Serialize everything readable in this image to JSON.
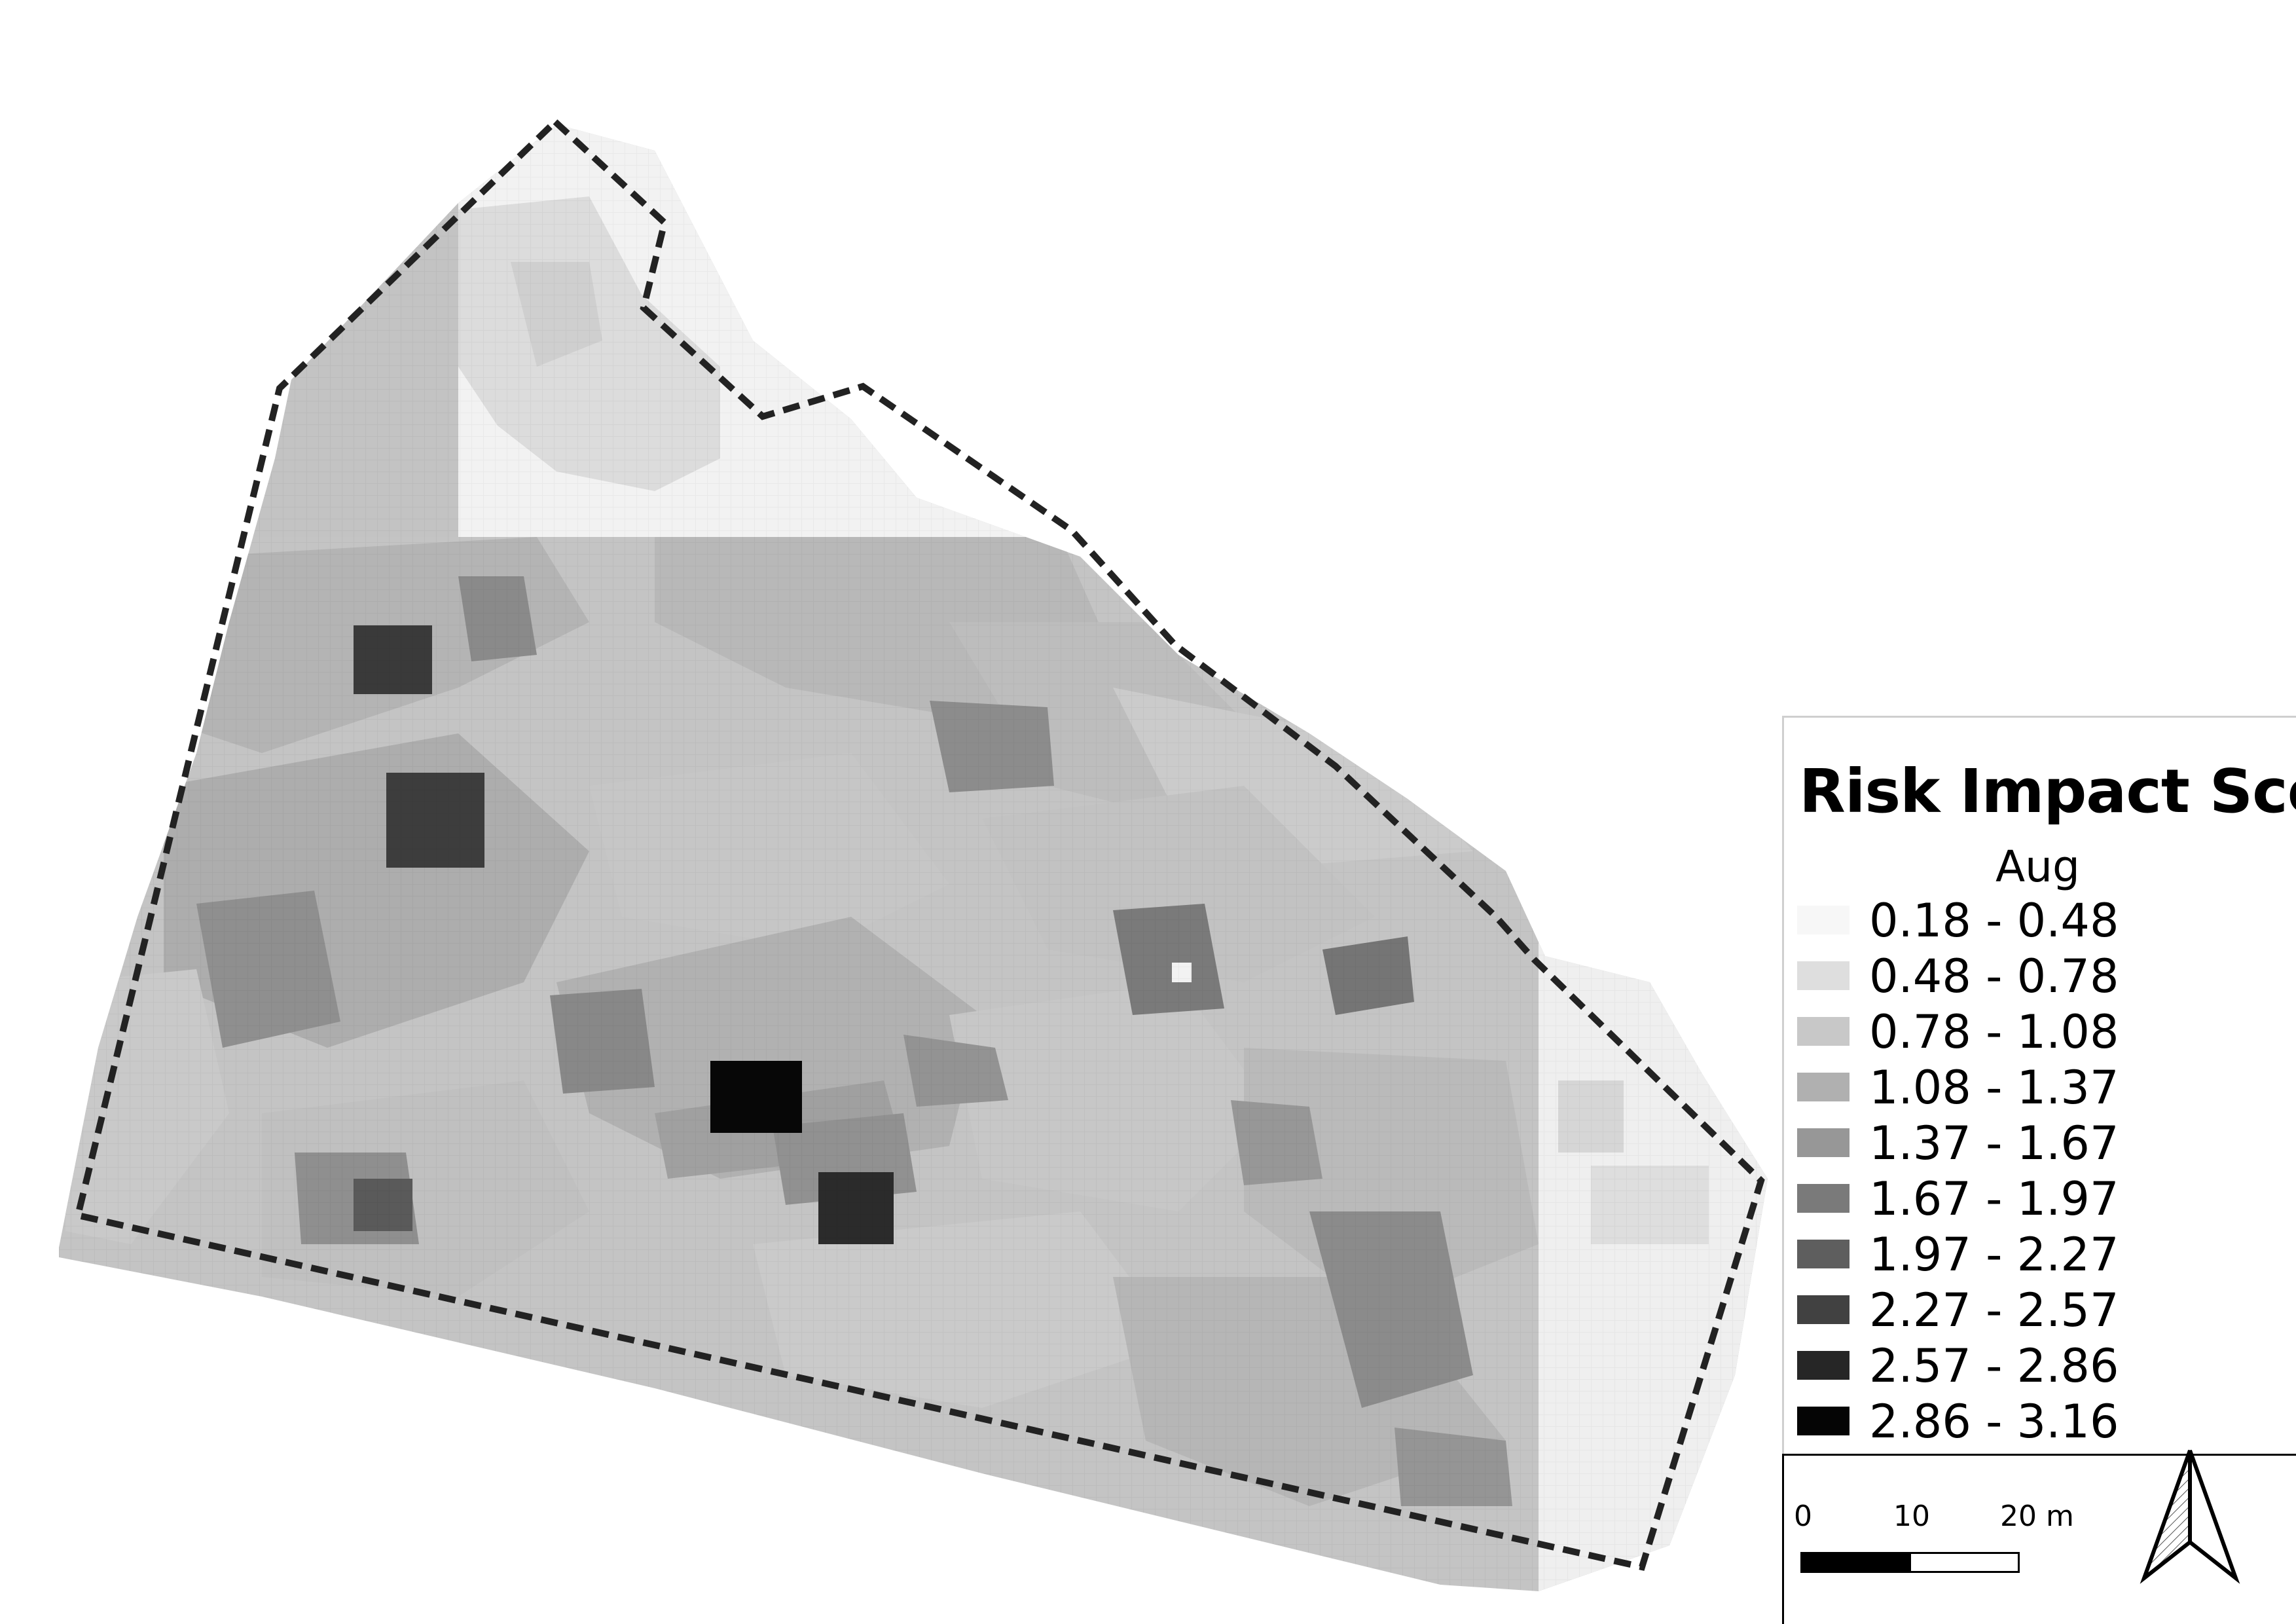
{
  "legend": {
    "title": "Risk Impact Score",
    "subtitle": "Aug",
    "classes": [
      {
        "label": "0.18 - 0.48",
        "color": "#f7f7f7"
      },
      {
        "label": "0.48 - 0.78",
        "color": "#dedede"
      },
      {
        "label": "0.78 - 1.08",
        "color": "#c8c8c8"
      },
      {
        "label": "1.08 - 1.37",
        "color": "#b0b0b0"
      },
      {
        "label": "1.37 - 1.67",
        "color": "#979797"
      },
      {
        "label": "1.67 - 1.97",
        "color": "#7a7a7a"
      },
      {
        "label": "1.97 - 2.27",
        "color": "#5e5e5e"
      },
      {
        "label": "2.27 - 2.57",
        "color": "#414141"
      },
      {
        "label": "2.57 - 2.86",
        "color": "#262626"
      },
      {
        "label": "2.86 - 3.16",
        "color": "#050505"
      }
    ]
  },
  "scale_bar": {
    "ticks": [
      "0",
      "10",
      "20 m"
    ]
  },
  "north_arrow": {
    "icon": "north-arrow-icon"
  },
  "boundary": {
    "style": "dashed",
    "color": "#222222"
  }
}
